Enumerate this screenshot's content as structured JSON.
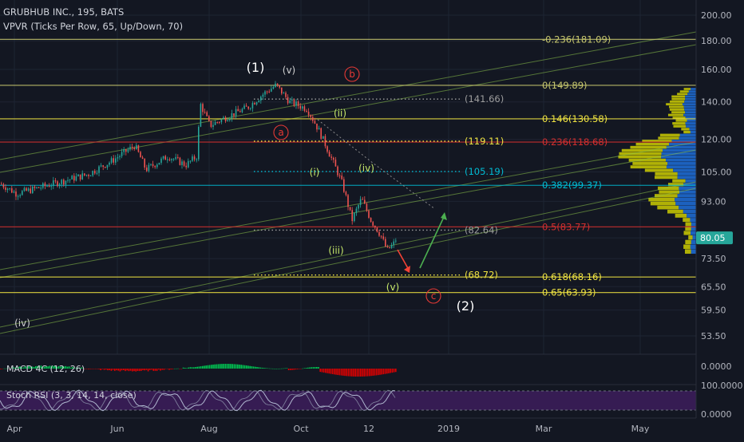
{
  "header": {
    "symbol_line": "GRUBHUB INC., 195, BATS",
    "indicator_line": "VPVR (Ticks Per Row, 65, Up/Down, 70)"
  },
  "colors": {
    "background": "#131722",
    "grid": "#1e2433",
    "axis_text": "#b2b5be",
    "candle_up": "#26a69a",
    "candle_down": "#ef5350",
    "fib_yellow": "#f0e442",
    "fib_olive": "#c8c86e",
    "fib_cyan": "#00bcd4",
    "fib_red": "#d32f2f",
    "channel": "#8bc34a",
    "vp_yellow": "#d8d800",
    "vp_blue": "#1e6fd9",
    "macd_up": "#00c853",
    "macd_down": "#e00000",
    "stoch_fill": "#3d1d5c",
    "stoch_line": "#b0b8d0"
  },
  "chart_data": {
    "type": "candlestick",
    "title": "GRUBHUB INC., 195, BATS",
    "price_axis": {
      "scale": "log",
      "range": [
        47,
        218
      ],
      "ticks": [
        200.0,
        180.0,
        160.0,
        140.0,
        120.0,
        105.0,
        93.0,
        80.05,
        73.5,
        65.5,
        59.5,
        53.5
      ],
      "current_price": 80.05,
      "tick_labels": [
        "200.00",
        "180.00",
        "160.00",
        "140.00",
        "120.00",
        "105.00",
        "93.00",
        "80.05",
        "73.50",
        "65.50",
        "59.50",
        "53.50"
      ]
    },
    "time_axis": {
      "labels": [
        "Apr",
        "Jun",
        "Aug",
        "Oct",
        "12",
        "2019",
        "Mar",
        "May"
      ]
    },
    "price_path": [
      [
        "Apr",
        100
      ],
      [
        "Apr",
        96
      ],
      [
        "May",
        99
      ],
      [
        "May",
        104
      ],
      [
        "Jun",
        110
      ],
      [
        "Jun",
        117
      ],
      [
        "Jun",
        106
      ],
      [
        "Jul",
        112
      ],
      [
        "Jul",
        108
      ],
      [
        "Jul",
        112
      ],
      [
        "Jul",
        139
      ],
      [
        "Aug",
        127
      ],
      [
        "Aug",
        133
      ],
      [
        "Aug",
        137
      ],
      [
        "Sep",
        145
      ],
      [
        "Sep",
        150
      ],
      [
        "Sep",
        140
      ],
      [
        "Oct",
        136
      ],
      [
        "Oct",
        125
      ],
      [
        "Oct",
        113
      ],
      [
        "Oct",
        100
      ],
      [
        "Nov",
        86
      ],
      [
        "Nov",
        94
      ],
      [
        "Nov",
        86
      ],
      [
        "Nov",
        81
      ],
      [
        "Dec",
        76
      ],
      [
        "Dec",
        78
      ],
      [
        "Dec",
        80
      ]
    ],
    "fib_levels": [
      {
        "label": "-0.236(181.09)",
        "value": 181.09,
        "color": "fib_olive"
      },
      {
        "label": "0(149.89)",
        "value": 149.89,
        "color": "fib_olive"
      },
      {
        "label": "0.146(130.58)",
        "value": 130.58,
        "color": "fib_yellow"
      },
      {
        "label": "0.236(118.68)",
        "value": 118.68,
        "color": "fib_red"
      },
      {
        "label": "0.382(99.37)",
        "value": 99.37,
        "color": "fib_cyan"
      },
      {
        "label": "0.5(83.77)",
        "value": 83.77,
        "color": "fib_red"
      },
      {
        "label": "0.618(68.16)",
        "value": 68.16,
        "color": "fib_yellow"
      },
      {
        "label": "0.65(63.93)",
        "value": 63.93,
        "color": "fib_yellow"
      }
    ],
    "dotted_levels": [
      {
        "label": "(141.66)",
        "value": 141.66,
        "color": "#9e9e9e"
      },
      {
        "label": "(119.11)",
        "value": 119.11,
        "color": "fib_yellow"
      },
      {
        "label": "(105.19)",
        "value": 105.19,
        "color": "fib_cyan"
      },
      {
        "label": "(82.64)",
        "value": 82.64,
        "color": "#9e9e9e"
      },
      {
        "label": "(68.72)",
        "value": 68.72,
        "color": "fib_yellow"
      }
    ],
    "wave_labels": [
      {
        "text": "(1)",
        "color": "#ffffff"
      },
      {
        "text": "(v)",
        "color": "#cfcfcf"
      },
      {
        "text": "b",
        "color": "#e53935",
        "circled": true
      },
      {
        "text": "a",
        "color": "#e53935",
        "circled": true
      },
      {
        "text": "(ii)",
        "color": "#c6e86a"
      },
      {
        "text": "(i)",
        "color": "#c6e86a"
      },
      {
        "text": "(iv)",
        "color": "#c6e86a"
      },
      {
        "text": "(iii)",
        "color": "#c6e86a"
      },
      {
        "text": "(v)",
        "color": "#c6e86a"
      },
      {
        "text": "c",
        "color": "#e53935",
        "circled": true
      },
      {
        "text": "(2)",
        "color": "#ffffff"
      },
      {
        "text": "(iv)",
        "color": "#cfcfcf"
      }
    ],
    "indicators": [
      {
        "name": "MACD 4C (12, 26)",
        "axis_ticks": [
          "0.0000"
        ]
      },
      {
        "name": "Stoch RSI (3, 3, 14, 14, close)",
        "axis_ticks": [
          "100.0000",
          "0.0000"
        ]
      }
    ]
  }
}
